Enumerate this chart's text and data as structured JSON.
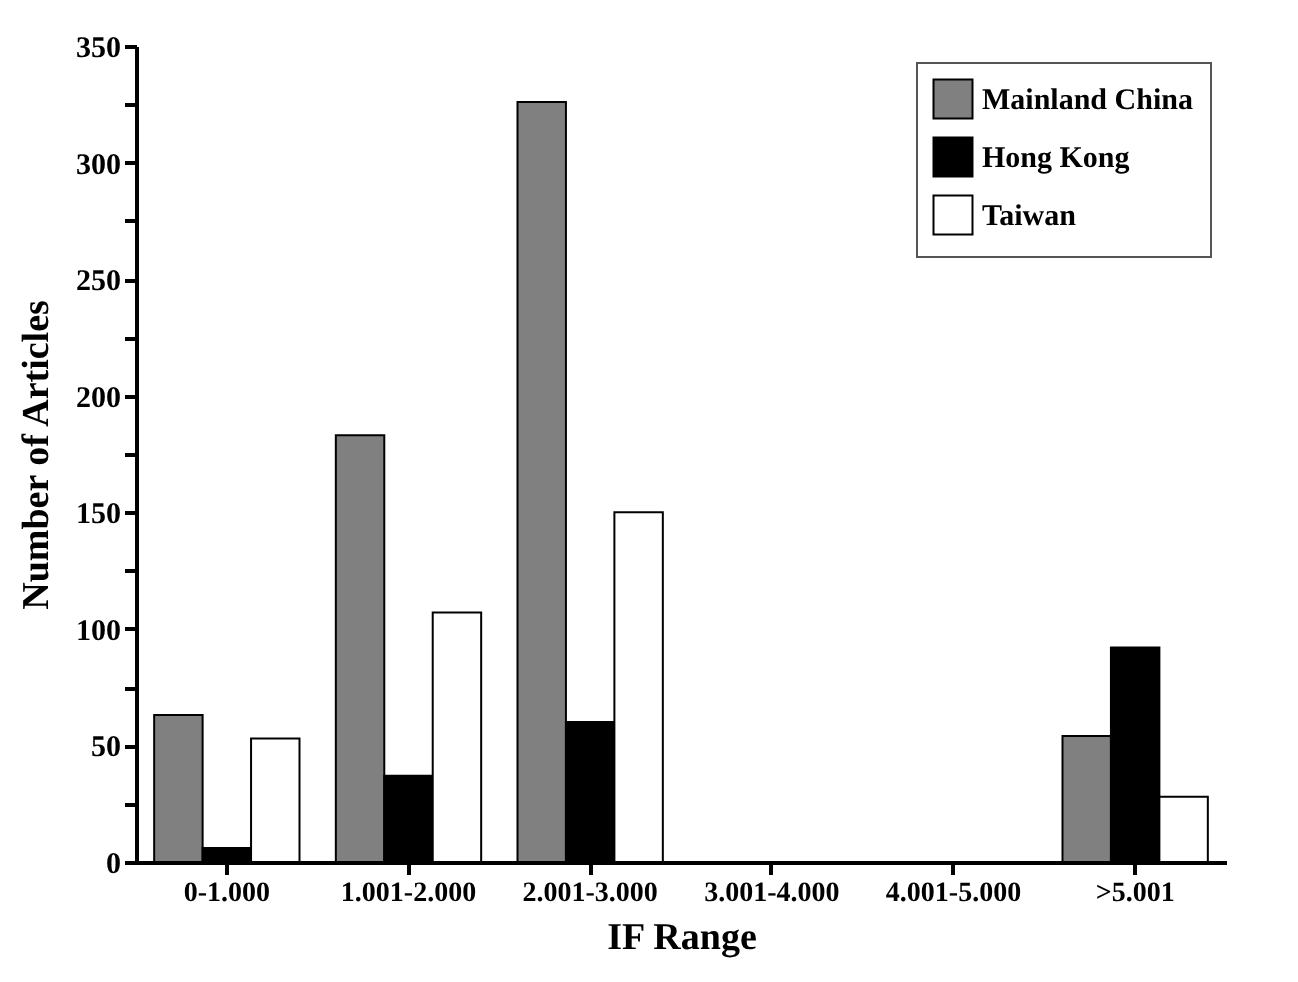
{
  "chart_data": {
    "type": "bar",
    "xlabel": "IF Range",
    "ylabel": "Number of Articles",
    "categories": [
      "0-1.000",
      "1.001-2.000",
      "2.001-3.000",
      "3.001-4.000",
      "4.001-5.000",
      ">5.001"
    ],
    "series": [
      {
        "name": "Mainland China",
        "color": "#808080",
        "values": [
          63,
          183,
          326,
          null,
          null,
          54
        ]
      },
      {
        "name": "Hong Kong",
        "color": "#000000",
        "values": [
          6,
          37,
          60,
          null,
          null,
          92
        ]
      },
      {
        "name": "Taiwan",
        "color": "#ffffff",
        "values": [
          53,
          107,
          150,
          null,
          null,
          28
        ]
      }
    ],
    "ylim": [
      0,
      350
    ],
    "yticks": [
      0,
      {
        "value": 25,
        "label": null
      },
      50,
      {
        "value": 75,
        "label": null
      },
      100,
      {
        "value": 125,
        "label": null
      },
      150,
      {
        "value": 175,
        "label": null
      },
      200,
      {
        "value": 225,
        "label": null
      },
      250,
      {
        "value": 275,
        "label": null
      },
      300,
      {
        "value": 325,
        "label": null
      },
      350
    ],
    "grid": false,
    "legend": "top right"
  }
}
